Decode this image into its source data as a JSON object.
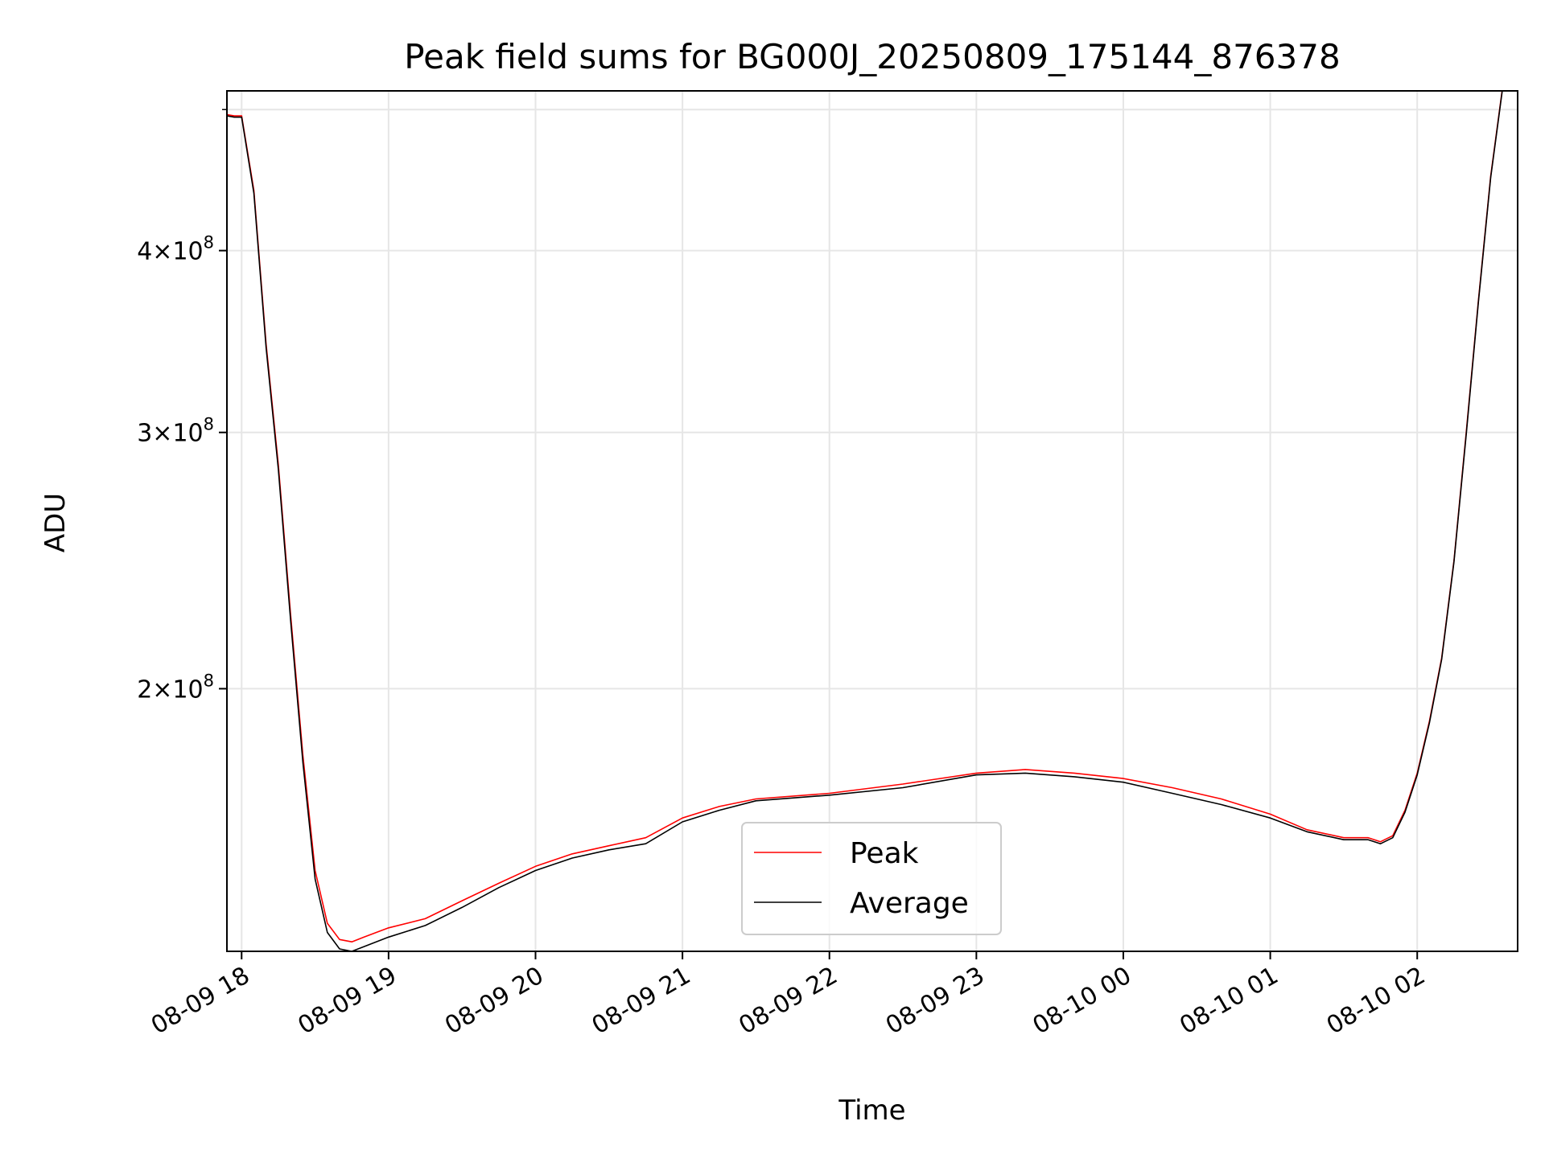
{
  "chart_data": {
    "type": "line",
    "title": "Peak field sums for BG000J_20250809_175144_876378",
    "xlabel": "Time",
    "ylabel": "ADU",
    "y_scale": "log",
    "xlim": [
      "2025-08-09 17:54",
      "2025-08-10 02:41"
    ],
    "ylim": [
      132000000,
      515000000
    ],
    "grid": true,
    "legend_position": "lower-center",
    "x_ticks": [
      {
        "value": "2025-08-09 18:00",
        "label": "08-09 18"
      },
      {
        "value": "2025-08-09 19:00",
        "label": "08-09 19"
      },
      {
        "value": "2025-08-09 20:00",
        "label": "08-09 20"
      },
      {
        "value": "2025-08-09 21:00",
        "label": "08-09 21"
      },
      {
        "value": "2025-08-09 22:00",
        "label": "08-09 22"
      },
      {
        "value": "2025-08-09 23:00",
        "label": "08-09 23"
      },
      {
        "value": "2025-08-10 00:00",
        "label": "08-10 00"
      },
      {
        "value": "2025-08-10 01:00",
        "label": "08-10 01"
      },
      {
        "value": "2025-08-10 02:00",
        "label": "08-10 02"
      }
    ],
    "y_ticks": [
      {
        "value": 200000000,
        "mantissa": "2",
        "base": "10",
        "exponent": "8"
      },
      {
        "value": 300000000,
        "mantissa": "3",
        "base": "10",
        "exponent": "8"
      },
      {
        "value": 400000000,
        "mantissa": "4",
        "base": "10",
        "exponent": "8"
      }
    ],
    "y_minor_ticks": [
      500000000
    ],
    "series": [
      {
        "name": "Peak",
        "color": "#ff0000",
        "x": [
          "2025-08-09 17:54",
          "2025-08-09 17:57",
          "2025-08-09 18:00",
          "2025-08-09 18:05",
          "2025-08-09 18:10",
          "2025-08-09 18:15",
          "2025-08-09 18:20",
          "2025-08-09 18:25",
          "2025-08-09 18:30",
          "2025-08-09 18:35",
          "2025-08-09 18:40",
          "2025-08-09 18:45",
          "2025-08-09 18:50",
          "2025-08-09 19:00",
          "2025-08-09 19:15",
          "2025-08-09 19:30",
          "2025-08-09 19:45",
          "2025-08-09 20:00",
          "2025-08-09 20:15",
          "2025-08-09 20:30",
          "2025-08-09 20:45",
          "2025-08-09 21:00",
          "2025-08-09 21:15",
          "2025-08-09 21:30",
          "2025-08-09 22:00",
          "2025-08-09 22:30",
          "2025-08-09 23:00",
          "2025-08-09 23:20",
          "2025-08-09 23:40",
          "2025-08-10 00:00",
          "2025-08-10 00:20",
          "2025-08-10 00:40",
          "2025-08-10 01:00",
          "2025-08-10 01:15",
          "2025-08-10 01:30",
          "2025-08-10 01:40",
          "2025-08-10 01:45",
          "2025-08-10 01:50",
          "2025-08-10 01:55",
          "2025-08-10 02:00",
          "2025-08-10 02:05",
          "2025-08-10 02:10",
          "2025-08-10 02:15",
          "2025-08-10 02:20",
          "2025-08-10 02:25",
          "2025-08-10 02:30",
          "2025-08-10 02:35"
        ],
        "y": [
          496000000,
          495000000,
          495000000,
          440000000,
          345000000,
          285000000,
          225000000,
          180000000,
          150000000,
          138000000,
          134500000,
          134000000,
          135000000,
          137000000,
          139000000,
          143000000,
          147000000,
          151000000,
          154000000,
          156000000,
          158000000,
          163000000,
          166000000,
          168000000,
          169500000,
          172000000,
          175000000,
          176000000,
          175000000,
          173500000,
          171000000,
          168000000,
          164000000,
          160000000,
          158000000,
          158000000,
          157000000,
          158500000,
          165000000,
          175000000,
          190000000,
          210000000,
          245000000,
          300000000,
          370000000,
          450000000,
          520000000
        ]
      },
      {
        "name": "Average",
        "color": "#000000",
        "x": [
          "2025-08-09 17:54",
          "2025-08-09 17:57",
          "2025-08-09 18:00",
          "2025-08-09 18:05",
          "2025-08-09 18:10",
          "2025-08-09 18:15",
          "2025-08-09 18:20",
          "2025-08-09 18:25",
          "2025-08-09 18:30",
          "2025-08-09 18:35",
          "2025-08-09 18:40",
          "2025-08-09 18:45",
          "2025-08-09 18:50",
          "2025-08-09 19:00",
          "2025-08-09 19:15",
          "2025-08-09 19:30",
          "2025-08-09 19:45",
          "2025-08-09 20:00",
          "2025-08-09 20:15",
          "2025-08-09 20:30",
          "2025-08-09 20:45",
          "2025-08-09 21:00",
          "2025-08-09 21:15",
          "2025-08-09 21:30",
          "2025-08-09 22:00",
          "2025-08-09 22:30",
          "2025-08-09 23:00",
          "2025-08-09 23:20",
          "2025-08-09 23:40",
          "2025-08-10 00:00",
          "2025-08-10 00:20",
          "2025-08-10 00:40",
          "2025-08-10 01:00",
          "2025-08-10 01:15",
          "2025-08-10 01:30",
          "2025-08-10 01:40",
          "2025-08-10 01:45",
          "2025-08-10 01:50",
          "2025-08-10 01:55",
          "2025-08-10 02:00",
          "2025-08-10 02:05",
          "2025-08-10 02:10",
          "2025-08-10 02:15",
          "2025-08-10 02:20",
          "2025-08-10 02:25",
          "2025-08-10 02:30",
          "2025-08-10 02:35"
        ],
        "y": [
          495000000,
          494000000,
          494000000,
          438000000,
          343000000,
          283000000,
          223000000,
          178000000,
          148000000,
          136000000,
          132500000,
          132000000,
          133000000,
          135000000,
          137500000,
          141500000,
          146000000,
          150000000,
          153000000,
          155000000,
          156500000,
          162000000,
          165000000,
          167500000,
          169000000,
          171000000,
          174500000,
          175000000,
          174000000,
          172500000,
          169500000,
          166500000,
          163000000,
          159500000,
          157500000,
          157500000,
          156500000,
          158000000,
          164500000,
          174500000,
          189500000,
          209500000,
          244500000,
          299000000,
          369000000,
          449000000,
          519000000
        ]
      }
    ]
  }
}
